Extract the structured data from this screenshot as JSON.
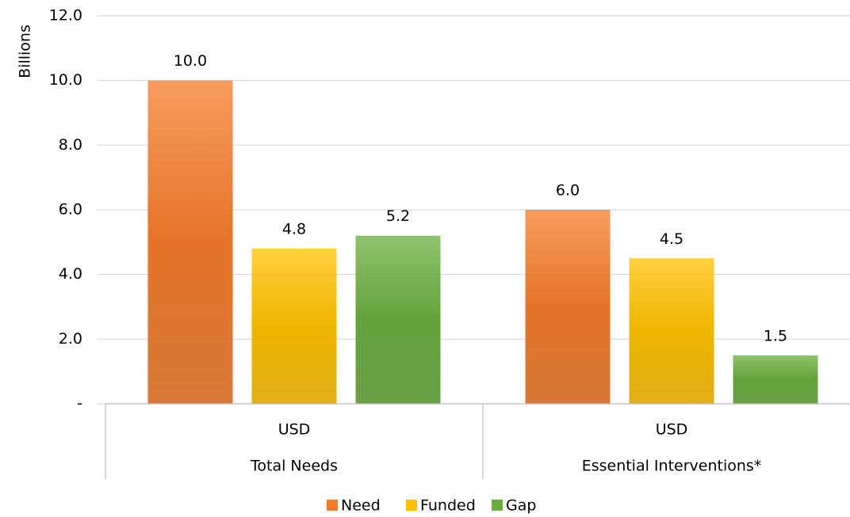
{
  "chart_data": {
    "type": "bar",
    "y_axis_label": "Billions",
    "categories": [
      "USD",
      "USD"
    ],
    "category_groups": [
      "Total  Needs",
      "Essential Interventions*"
    ],
    "series": [
      {
        "name": "Need",
        "color": "#f47b2a",
        "values": [
          10.0,
          6.0
        ],
        "value_labels": [
          "10.0",
          "6.0"
        ]
      },
      {
        "name": "Funded",
        "color": "#ffc000",
        "values": [
          4.8,
          4.5
        ],
        "value_labels": [
          "4.8",
          "4.5"
        ]
      },
      {
        "name": "Gap",
        "color": "#6aad3d",
        "values": [
          5.2,
          1.5
        ],
        "value_labels": [
          "5.2",
          "1.5"
        ]
      }
    ],
    "ylim": [
      0,
      12
    ],
    "yticks": [
      {
        "value": 0,
        "label": "-"
      },
      {
        "value": 2,
        "label": "2.0"
      },
      {
        "value": 4,
        "label": "4.0"
      },
      {
        "value": 6,
        "label": "6.0"
      },
      {
        "value": 8,
        "label": "8.0"
      },
      {
        "value": 10,
        "label": "10.0"
      },
      {
        "value": 12,
        "label": "12.0"
      }
    ],
    "grid": true,
    "legend": "bottom"
  }
}
